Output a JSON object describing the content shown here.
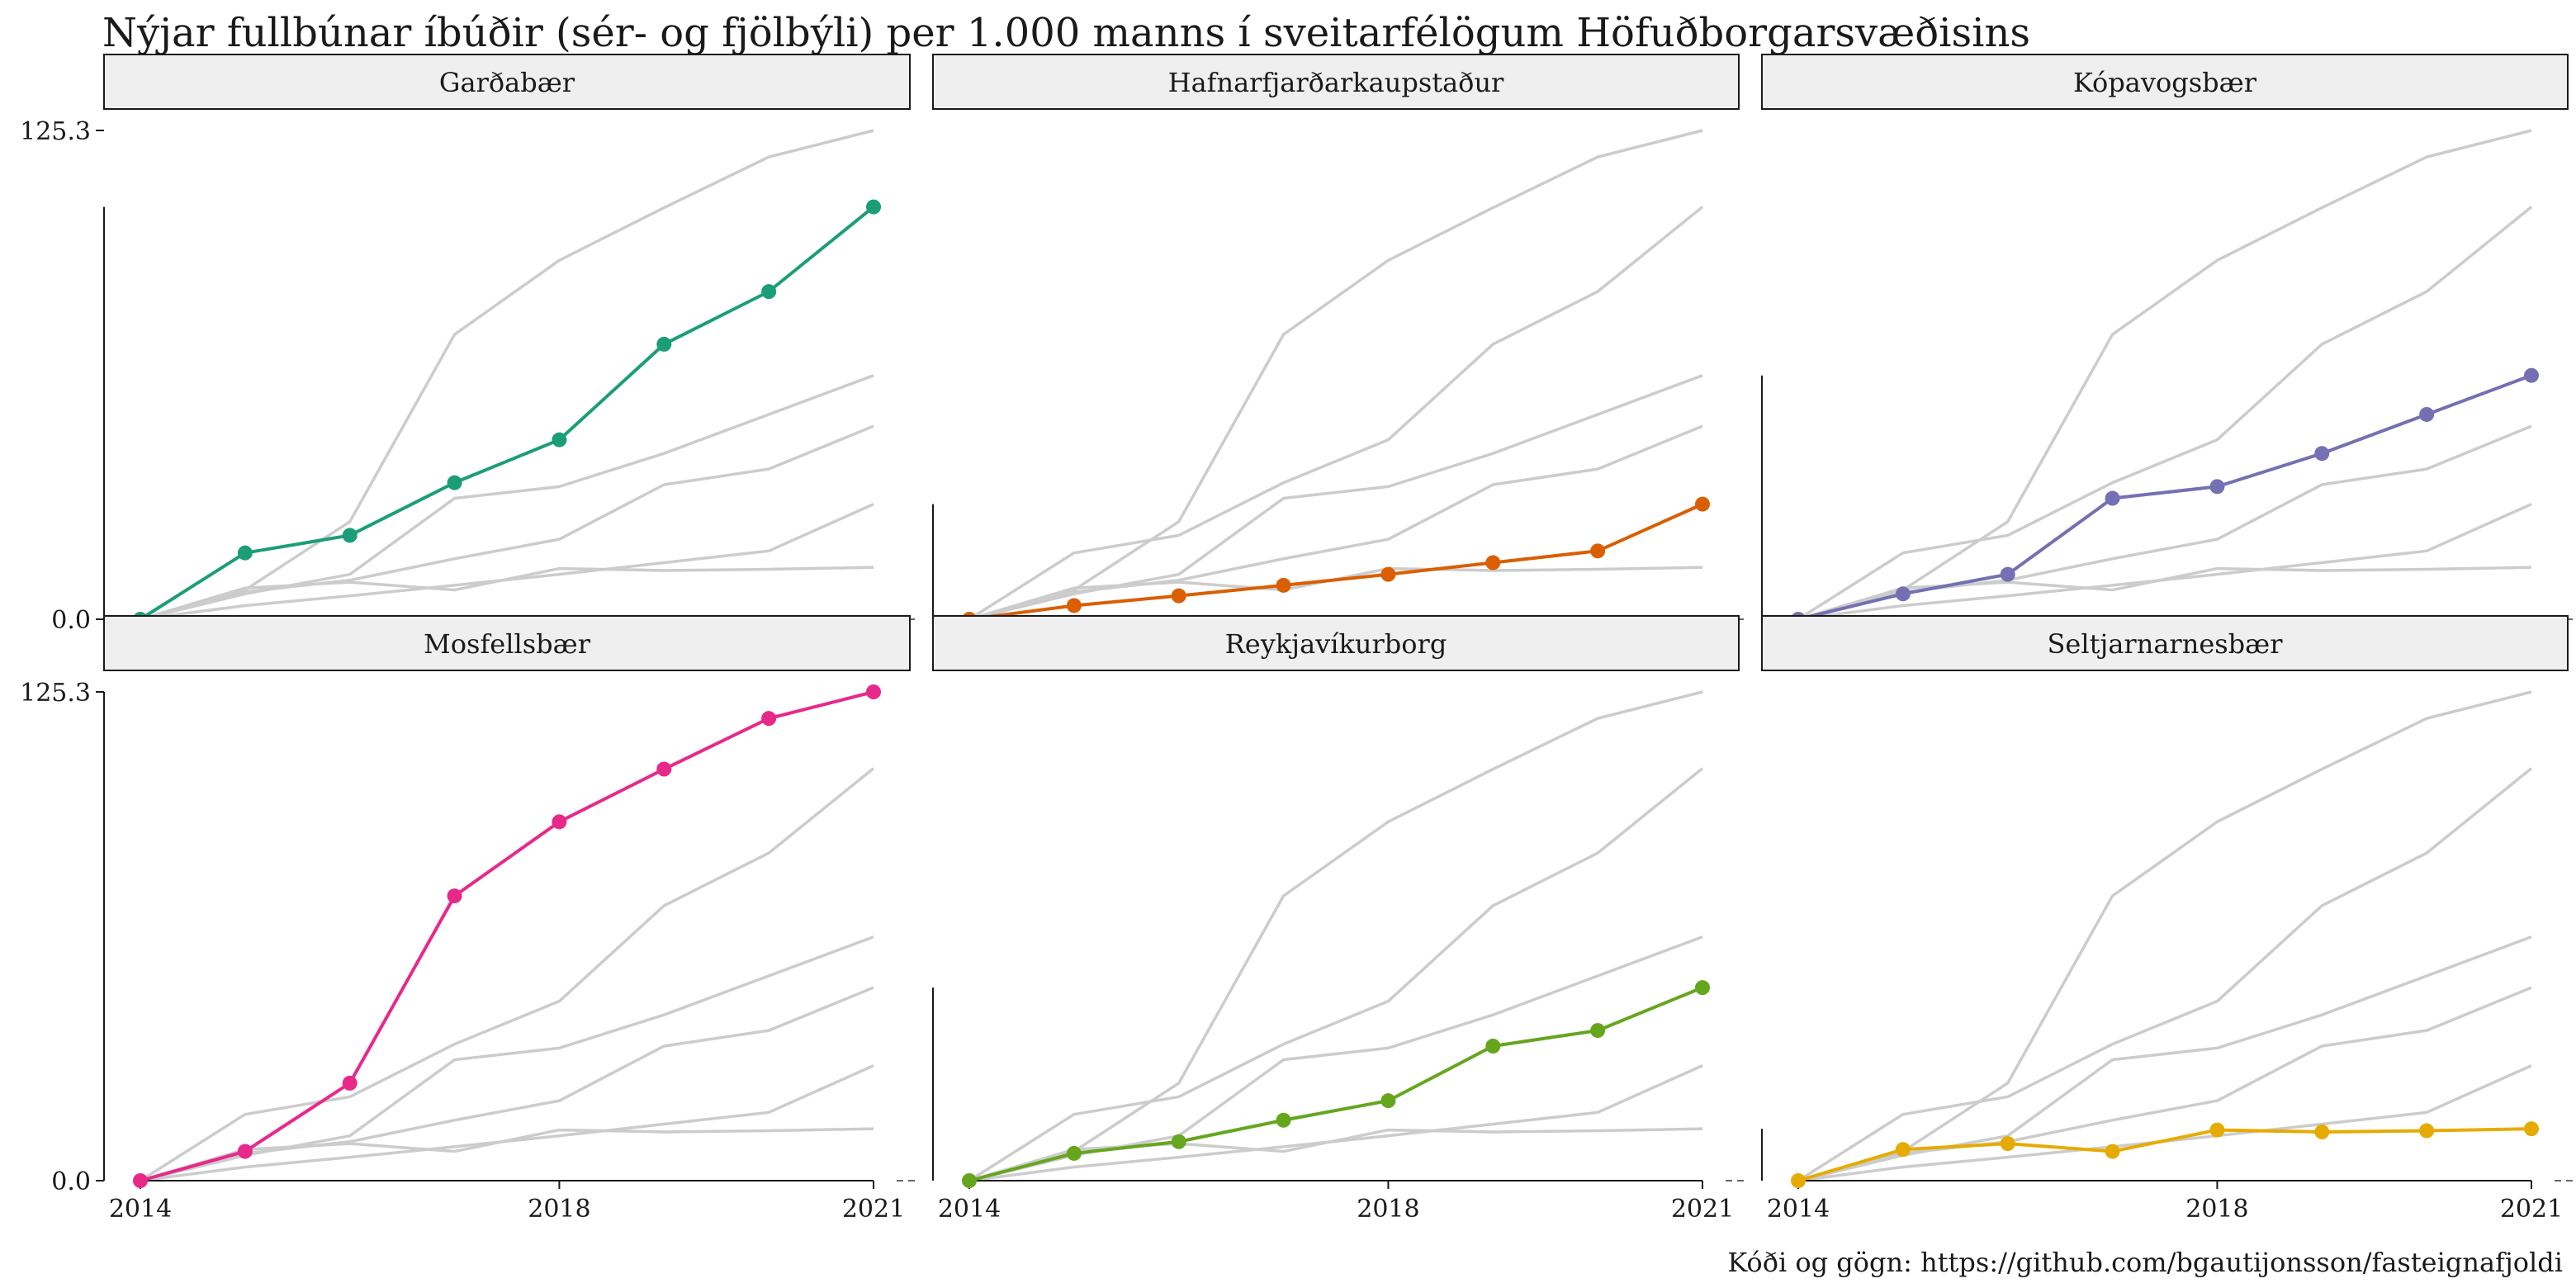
{
  "title": "Nýjar fullbúnar íbúðir (sér- og fjölbýli) per 1.000 manns í sveitarfélögum Höfuðborgarsvæðisins",
  "caption": "Kóði og gögn: https://github.com/bgautijonsson/fasteignafjoldi",
  "colors": {
    "background_line": "#cccccc",
    "strip_fill": "#efefef",
    "strip_border": "#1a1a1a",
    "axis": "#1a1a1a"
  },
  "chart_data": {
    "type": "line",
    "layout": "facet-grid-3x2",
    "x": [
      2014,
      2015,
      2016,
      2017,
      2018,
      2019,
      2020,
      2021
    ],
    "x_ticks": [
      "2014",
      "2018",
      "2021"
    ],
    "y_ticks": [
      "0.0",
      "125.3"
    ],
    "ylim": [
      0,
      125.3
    ],
    "background_series": "all municipalities drawn in light grey in every panel",
    "series": [
      {
        "name": "Garðabær",
        "color": "#1b9e77",
        "values": [
          0,
          17,
          21.5,
          35,
          46,
          70.5,
          84,
          105.7
        ]
      },
      {
        "name": "Hafnarfjarðarkaupstaður",
        "color": "#d95f02",
        "values": [
          0,
          3.5,
          6,
          8.7,
          11.5,
          14.5,
          17.5,
          29.5
        ]
      },
      {
        "name": "Kópavogsbær",
        "color": "#7570b3",
        "values": [
          0,
          6.5,
          11.5,
          31,
          34,
          42.5,
          52.5,
          62.5
        ]
      },
      {
        "name": "Mosfellsbær",
        "color": "#e7298a",
        "values": [
          0,
          7.5,
          25,
          73,
          92,
          105.5,
          118.5,
          125.3
        ]
      },
      {
        "name": "Reykjavíkurborg",
        "color": "#66a61e",
        "values": [
          0,
          7,
          10,
          15.5,
          20.5,
          34.5,
          38.5,
          49.5
        ]
      },
      {
        "name": "Seltjarnarnesbær",
        "color": "#e6ab02",
        "values": [
          0,
          8,
          9.5,
          7.5,
          13,
          12.5,
          12.8,
          13.3
        ]
      }
    ]
  }
}
